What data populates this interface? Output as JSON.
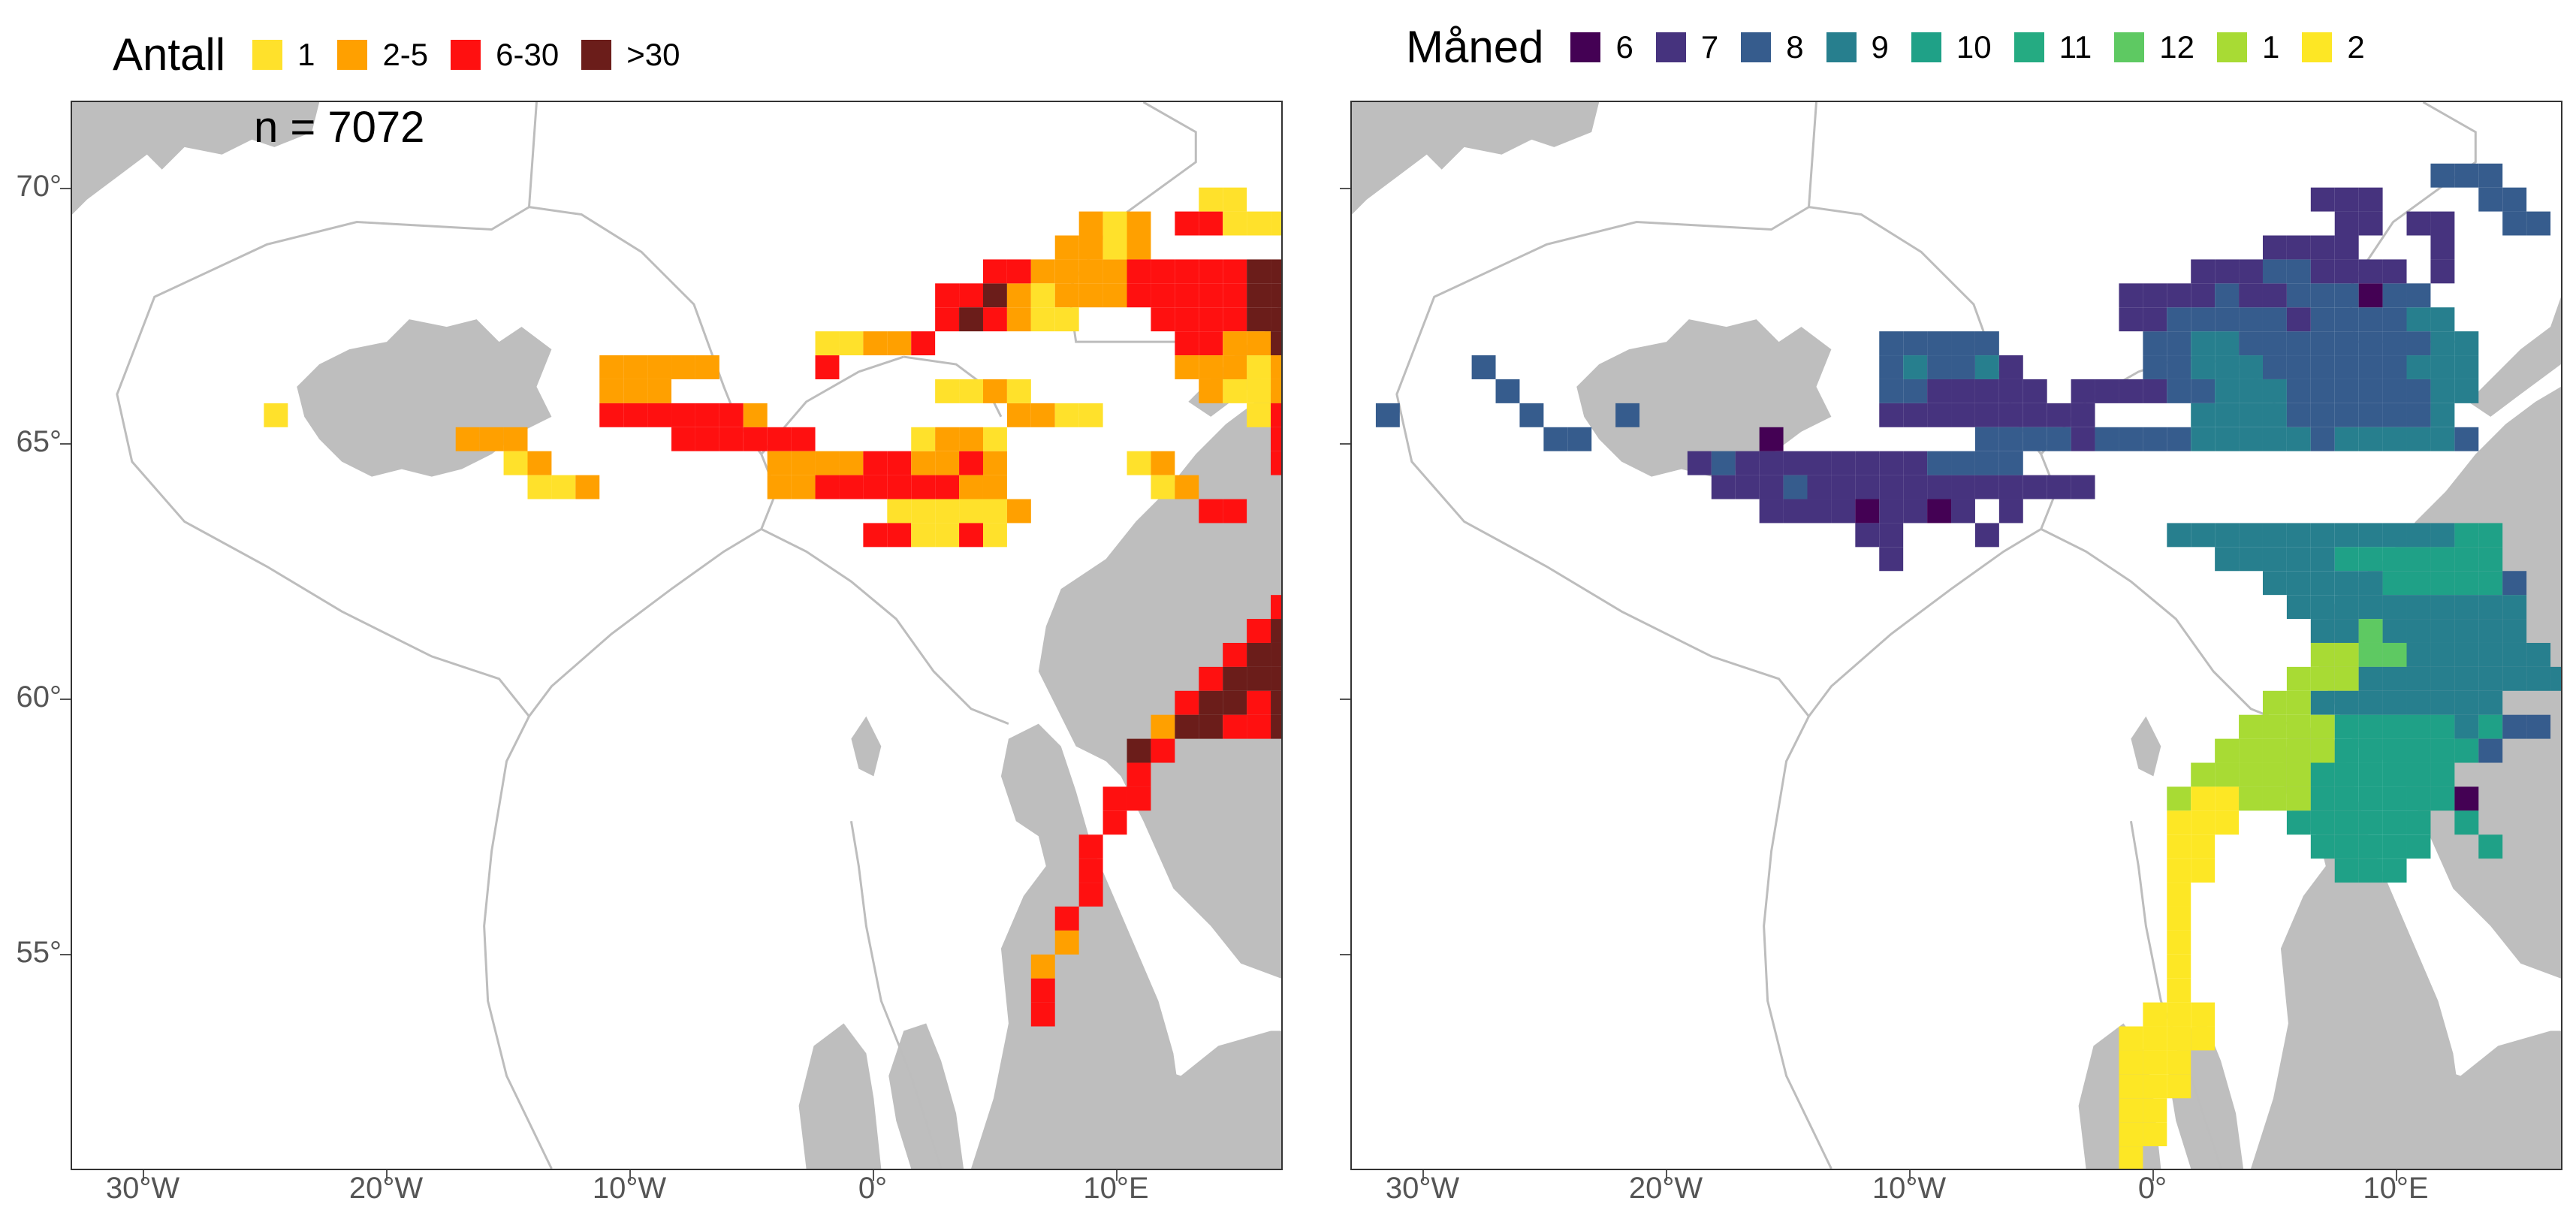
{
  "left": {
    "legend_title": "Antall",
    "legend": [
      {
        "label": "1",
        "color": "#FFE12B"
      },
      {
        "label": "2-5",
        "color": "#FFA000"
      },
      {
        "label": "6-30",
        "color": "#FF1010"
      },
      {
        "label": ">30",
        "color": "#6B1D1A"
      }
    ],
    "annotation": "n = 7072"
  },
  "right": {
    "legend_title": "Måned",
    "legend": [
      {
        "label": "6",
        "color": "#440154"
      },
      {
        "label": "7",
        "color": "#46337E"
      },
      {
        "label": "8",
        "color": "#365C8D"
      },
      {
        "label": "9",
        "color": "#277F8E"
      },
      {
        "label": "10",
        "color": "#1FA187"
      },
      {
        "label": "11",
        "color": "#25AB82"
      },
      {
        "label": "12",
        "color": "#5EC962"
      },
      {
        "label": "1",
        "color": "#A8DB34"
      },
      {
        "label": "2",
        "color": "#FDE725"
      }
    ]
  },
  "axes": {
    "y_ticks": [
      "70°",
      "65°",
      "60°",
      "55°"
    ],
    "x_ticks": [
      "30°W",
      "20°W",
      "10°W",
      "0°",
      "10°E"
    ]
  },
  "colors": {
    "land": "#BEBEBE",
    "boundary": "#BDBDBD",
    "frame": "#333333"
  }
}
